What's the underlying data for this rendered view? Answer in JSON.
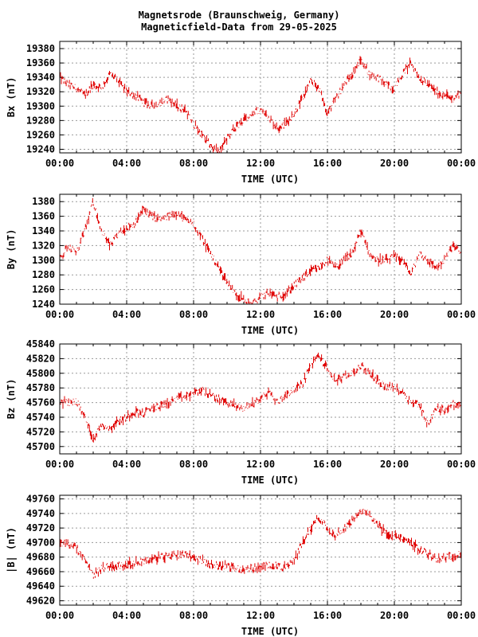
{
  "header": {
    "line1": "Magnetsrode (Braunschweig, Germany)",
    "line2": "Magneticfield-Data from 29-05-2025"
  },
  "colors": {
    "trace": "#e00000",
    "grid": "#9a9a9a",
    "frame": "#000000"
  },
  "chart_data": [
    {
      "type": "scatter",
      "id": "bx",
      "ylabel": "Bx (nT)",
      "xlabel": "TIME (UTC)",
      "x_unit": "hours",
      "xlim": [
        0,
        24
      ],
      "x_ticks": [
        "00:00",
        "04:00",
        "08:00",
        "12:00",
        "16:00",
        "20:00",
        "00:00"
      ],
      "ylim": [
        19235,
        19390
      ],
      "y_ticks": [
        19240,
        19260,
        19280,
        19300,
        19320,
        19340,
        19360,
        19380
      ],
      "grid": true,
      "x": [
        0,
        0.5,
        1.0,
        1.5,
        2.0,
        2.5,
        3.0,
        3.5,
        4.0,
        4.5,
        5.0,
        5.5,
        6.0,
        6.5,
        7.0,
        7.5,
        8.0,
        8.5,
        9.0,
        9.5,
        10.0,
        10.5,
        11.0,
        11.5,
        12.0,
        12.5,
        13.0,
        13.5,
        14.0,
        14.5,
        15.0,
        15.5,
        16.0,
        16.5,
        17.0,
        17.5,
        18.0,
        18.5,
        19.0,
        19.5,
        20.0,
        20.5,
        21.0,
        21.5,
        22.0,
        22.5,
        23.0,
        23.5,
        24.0
      ],
      "values": [
        19340,
        19330,
        19325,
        19315,
        19330,
        19325,
        19345,
        19335,
        19320,
        19315,
        19305,
        19300,
        19305,
        19310,
        19300,
        19295,
        19275,
        19260,
        19245,
        19235,
        19255,
        19270,
        19280,
        19290,
        19295,
        19285,
        19270,
        19275,
        19290,
        19310,
        19335,
        19325,
        19290,
        19310,
        19330,
        19345,
        19365,
        19345,
        19340,
        19330,
        19325,
        19345,
        19360,
        19340,
        19330,
        19320,
        19315,
        19310,
        19320
      ]
    },
    {
      "type": "scatter",
      "id": "by",
      "ylabel": "By (nT)",
      "xlabel": "TIME (UTC)",
      "x_unit": "hours",
      "xlim": [
        0,
        24
      ],
      "x_ticks": [
        "00:00",
        "04:00",
        "08:00",
        "12:00",
        "16:00",
        "20:00",
        "00:00"
      ],
      "ylim": [
        1240,
        1390
      ],
      "y_ticks": [
        1240,
        1260,
        1280,
        1300,
        1320,
        1340,
        1360,
        1380
      ],
      "grid": true,
      "x": [
        0,
        0.5,
        1.0,
        1.5,
        2.0,
        2.5,
        3.0,
        3.5,
        4.0,
        4.5,
        5.0,
        5.5,
        6.0,
        6.5,
        7.0,
        7.5,
        8.0,
        8.5,
        9.0,
        9.5,
        10.0,
        10.5,
        11.0,
        11.5,
        12.0,
        12.5,
        13.0,
        13.5,
        14.0,
        14.5,
        15.0,
        15.5,
        16.0,
        16.5,
        17.0,
        17.5,
        18.0,
        18.5,
        19.0,
        19.5,
        20.0,
        20.5,
        21.0,
        21.5,
        22.0,
        22.5,
        23.0,
        23.5,
        24.0
      ],
      "values": [
        1300,
        1320,
        1310,
        1340,
        1380,
        1340,
        1320,
        1335,
        1345,
        1350,
        1370,
        1360,
        1355,
        1360,
        1365,
        1355,
        1350,
        1330,
        1310,
        1290,
        1270,
        1255,
        1245,
        1240,
        1250,
        1255,
        1250,
        1255,
        1265,
        1275,
        1285,
        1290,
        1300,
        1290,
        1300,
        1310,
        1340,
        1310,
        1300,
        1300,
        1305,
        1300,
        1280,
        1310,
        1300,
        1290,
        1300,
        1320,
        1310
      ]
    },
    {
      "type": "scatter",
      "id": "bz",
      "ylabel": "Bz (nT)",
      "xlabel": "TIME (UTC)",
      "x_unit": "hours",
      "xlim": [
        0,
        24
      ],
      "x_ticks": [
        "00:00",
        "04:00",
        "08:00",
        "12:00",
        "16:00",
        "20:00",
        "00:00"
      ],
      "ylim": [
        45690,
        45840
      ],
      "y_ticks": [
        45700,
        45720,
        45740,
        45760,
        45780,
        45800,
        45820,
        45840
      ],
      "grid": true,
      "x": [
        0,
        0.5,
        1.0,
        1.5,
        2.0,
        2.5,
        3.0,
        3.5,
        4.0,
        4.5,
        5.0,
        5.5,
        6.0,
        6.5,
        7.0,
        7.5,
        8.0,
        8.5,
        9.0,
        9.5,
        10.0,
        10.5,
        11.0,
        11.5,
        12.0,
        12.5,
        13.0,
        13.5,
        14.0,
        14.5,
        15.0,
        15.5,
        16.0,
        16.5,
        17.0,
        17.5,
        18.0,
        18.5,
        19.0,
        19.5,
        20.0,
        20.5,
        21.0,
        21.5,
        22.0,
        22.5,
        23.0,
        23.5,
        24.0
      ],
      "values": [
        45762,
        45760,
        45762,
        45740,
        45710,
        45730,
        45725,
        45735,
        45740,
        45748,
        45745,
        45752,
        45755,
        45760,
        45765,
        45768,
        45772,
        45778,
        45770,
        45765,
        45760,
        45755,
        45752,
        45758,
        45765,
        45775,
        45760,
        45770,
        45778,
        45785,
        45810,
        45825,
        45805,
        45790,
        45795,
        45800,
        45810,
        45800,
        45790,
        45782,
        45780,
        45775,
        45760,
        45758,
        45730,
        45752,
        45750,
        45758,
        45755
      ]
    },
    {
      "type": "scatter",
      "id": "bt",
      "ylabel": "|B| (nT)",
      "xlabel": "TIME (UTC)",
      "x_unit": "hours",
      "xlim": [
        0,
        24
      ],
      "x_ticks": [
        "00:00",
        "04:00",
        "08:00",
        "12:00",
        "16:00",
        "20:00",
        "00:00"
      ],
      "ylim": [
        49614,
        49765
      ],
      "y_ticks": [
        49620,
        49640,
        49660,
        49680,
        49700,
        49720,
        49740,
        49760
      ],
      "grid": true,
      "x": [
        0,
        0.5,
        1.0,
        1.5,
        2.0,
        2.5,
        3.0,
        3.5,
        4.0,
        4.5,
        5.0,
        5.5,
        6.0,
        6.5,
        7.0,
        7.5,
        8.0,
        8.5,
        9.0,
        9.5,
        10.0,
        10.5,
        11.0,
        11.5,
        12.0,
        12.5,
        13.0,
        13.5,
        14.0,
        14.5,
        15.0,
        15.5,
        16.0,
        16.5,
        17.0,
        17.5,
        18.0,
        18.5,
        19.0,
        19.5,
        20.0,
        20.5,
        21.0,
        21.5,
        22.0,
        22.5,
        23.0,
        23.5,
        24.0
      ],
      "values": [
        49700,
        49698,
        49692,
        49675,
        49655,
        49665,
        49668,
        49668,
        49670,
        49672,
        49675,
        49677,
        49680,
        49682,
        49683,
        49685,
        49680,
        49675,
        49670,
        49668,
        49668,
        49665,
        49662,
        49665,
        49665,
        49670,
        49668,
        49665,
        49675,
        49700,
        49720,
        49735,
        49720,
        49710,
        49720,
        49730,
        49742,
        49740,
        49725,
        49712,
        49708,
        49705,
        49700,
        49690,
        49685,
        49678,
        49680,
        49682,
        49685
      ]
    }
  ]
}
